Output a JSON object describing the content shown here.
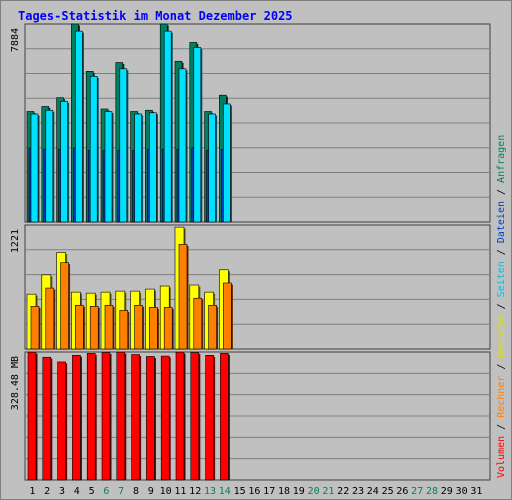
{
  "chart_data": {
    "type": "bar",
    "title": "Tages-Statistik im Monat Dezember 2025",
    "x": [
      "1",
      "2",
      "3",
      "4",
      "5",
      "6",
      "7",
      "8",
      "9",
      "10",
      "11",
      "12",
      "13",
      "14",
      "15",
      "16",
      "17",
      "18",
      "19",
      "20",
      "21",
      "22",
      "23",
      "24",
      "25",
      "26",
      "27",
      "28",
      "29",
      "30",
      "31"
    ],
    "weekend_days": [
      "6",
      "7",
      "13",
      "14",
      "20",
      "21",
      "27",
      "28"
    ],
    "panels": [
      {
        "id": "top",
        "max_label": "7884",
        "ylim": [
          0,
          7884
        ],
        "series": [
          {
            "name": "Anfragen",
            "color": "#008060",
            "values": [
              4400,
              4600,
              4950,
              7884,
              6000,
              4500,
              6350,
              4400,
              4450,
              7884,
              6400,
              7150,
              4400,
              5050
            ]
          },
          {
            "name": "Dateien",
            "color": "#0040c0",
            "values": [
              2950,
              2900,
              2900,
              2950,
              2850,
              2850,
              2850,
              2850,
              2900,
              2900,
              2900,
              2950,
              2850,
              2900
            ]
          },
          {
            "name": "Seiten",
            "color": "#00e0ff",
            "values": [
              4300,
              4450,
              4800,
              7600,
              5800,
              4400,
              6100,
              4300,
              4350,
              7600,
              6100,
              6950,
              4300,
              4700
            ]
          }
        ]
      },
      {
        "id": "middle",
        "max_label": "1221",
        "ylim": [
          0,
          1221
        ],
        "series": [
          {
            "name": "Besuche",
            "color": "#ffff00",
            "values": [
              540,
              730,
              950,
              560,
              550,
              560,
              570,
              570,
              590,
              620,
              1200,
              630,
              560,
              780
            ]
          },
          {
            "name": "Rechner",
            "color": "#ff8000",
            "values": [
              420,
              600,
              850,
              430,
              420,
              430,
              380,
              430,
              410,
              410,
              1030,
              500,
              430,
              650
            ]
          }
        ]
      },
      {
        "id": "bottom",
        "max_label": "328.48 MB",
        "ylim": [
          0,
          328.48
        ],
        "series": [
          {
            "name": "Volumen",
            "color": "#ff0000",
            "values": [
              328,
              315,
              303,
              320,
              325,
              327,
              328,
              322,
              317,
              318,
              328,
              327,
              320,
              325
            ]
          }
        ]
      }
    ],
    "legend_right": [
      "Volumen",
      "Rechner",
      "Besuche",
      "Seiten",
      "Dateien",
      "Anfragen"
    ],
    "legend_colors": [
      "#ff0000",
      "#ff8000",
      "#e0e000",
      "#00c0e0",
      "#0040c0",
      "#008060"
    ],
    "legend_separator": "/",
    "grid": true,
    "colors": {
      "title": "#0000ff",
      "plot_bg": "#c0c0c0",
      "grid": "#808080",
      "weekday_tick": "#000000",
      "weekend_tick": "#008060"
    }
  }
}
